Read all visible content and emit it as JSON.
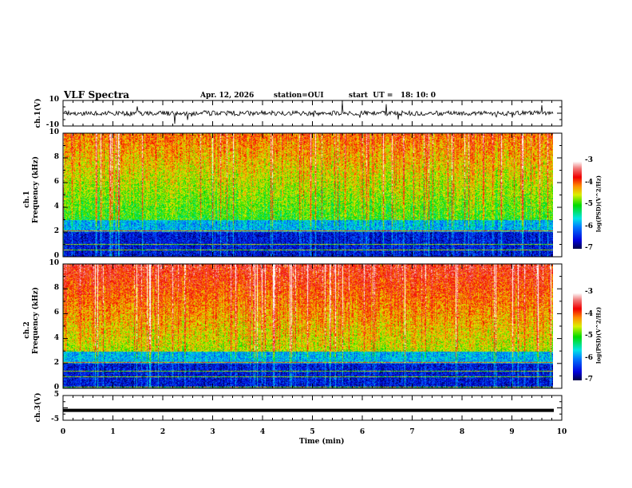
{
  "header": {
    "title": "VLF Spectra",
    "date": "Apr. 12, 2026",
    "station": "station=OUI",
    "start": "start  UT =   18: 10: 0"
  },
  "chart_data": [
    {
      "type": "line",
      "name": "ch1",
      "ylabel": "ch.1(V)",
      "ylim": [
        -10,
        10
      ],
      "yticks": [
        "10",
        "-10"
      ],
      "description_values": {
        "baseline": 0,
        "noise_amplitude_v": 1.5
      }
    },
    {
      "type": "heatmap",
      "name": "ch1-spectrogram",
      "ylabel": "ch.1\nFrequency (kHz)",
      "ylabel1": "ch.1",
      "ylabel2": "Frequency (kHz)",
      "ylim": [
        0,
        10
      ],
      "yticks": [
        "0",
        "2",
        "4",
        "6",
        "8",
        "10"
      ],
      "colorbar": {
        "label": "log(PSD)(V^2/Hz)",
        "range": [
          -7,
          -3
        ],
        "ticks": [
          "-3",
          "-4",
          "-5",
          "-6",
          "-7"
        ]
      }
    },
    {
      "type": "heatmap",
      "name": "ch2-spectrogram",
      "ylabel1": "ch.2",
      "ylabel2": "Frequency (kHz)",
      "ylim": [
        0,
        10
      ],
      "yticks": [
        "0",
        "2",
        "4",
        "6",
        "8",
        "10"
      ],
      "colorbar": {
        "label": "log(PSD)(V^2/Hz)",
        "range": [
          -7,
          -3
        ],
        "ticks": [
          "-3",
          "-4",
          "-5",
          "-6",
          "-7"
        ]
      }
    },
    {
      "type": "line",
      "name": "ch3",
      "ylabel": "ch.3(V)",
      "ylim": [
        -5,
        5
      ],
      "yticks": [
        "5",
        "-5"
      ],
      "value": -1
    }
  ],
  "xaxis": {
    "label": "Time  (min)",
    "range": [
      0,
      10
    ],
    "ticks": [
      "0",
      "1",
      "2",
      "3",
      "4",
      "5",
      "6",
      "7",
      "8",
      "9",
      "10"
    ]
  },
  "colors": {
    "low": "#000080",
    "high": "#ffffff"
  }
}
